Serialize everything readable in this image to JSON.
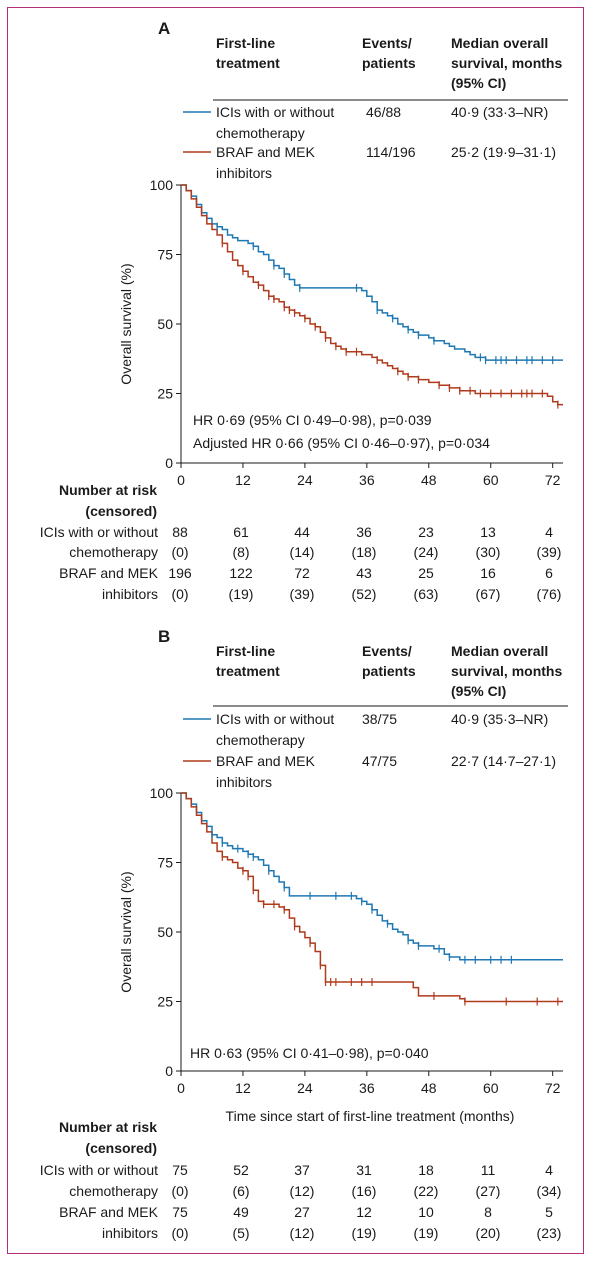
{
  "colors": {
    "ici": "#1f78b4",
    "braf": "#b03a1c",
    "frame": "#b0307c",
    "axis": "#1a1a1a"
  },
  "chart_data": [
    {
      "type": "line",
      "panel": "A",
      "legend_headers": {
        "treatment": [
          "First-line",
          "treatment"
        ],
        "events": [
          "Events/",
          "patients"
        ],
        "median": [
          "Median overall",
          "survival, months",
          "(95% CI)"
        ]
      },
      "series": [
        {
          "name_lines": [
            "ICIs with or without",
            "chemotherapy"
          ],
          "events": "46/88",
          "median": "40·9 (33·3–NR)",
          "x": [
            0,
            1,
            2,
            3,
            4,
            5,
            6,
            7,
            8,
            9,
            10,
            11,
            12,
            13,
            14,
            15,
            16,
            17,
            18,
            19,
            20,
            21,
            22,
            23,
            24,
            25,
            26,
            27,
            28,
            29,
            30,
            31,
            32,
            33,
            34,
            35,
            36,
            37,
            38,
            39,
            40,
            41,
            42,
            43,
            44,
            45,
            46,
            47,
            48,
            49,
            50,
            51,
            52,
            53,
            54,
            55,
            56,
            57,
            58,
            59,
            60,
            61,
            62,
            63,
            64,
            65,
            66,
            67,
            68,
            69,
            70,
            71,
            72,
            73,
            74
          ],
          "y": [
            100,
            98,
            96,
            93,
            90,
            88,
            86,
            85,
            84,
            82,
            81,
            80,
            80,
            79,
            78,
            76,
            75,
            73,
            71,
            70,
            68,
            66,
            64,
            63,
            63,
            63,
            63,
            63,
            63,
            63,
            63,
            63,
            63,
            63,
            63,
            62,
            60,
            58,
            55,
            54,
            53,
            52,
            50,
            49,
            48,
            47,
            46,
            46,
            45,
            44,
            44,
            43,
            42,
            41,
            41,
            40,
            39,
            38,
            38,
            37,
            37,
            37,
            37,
            37,
            37,
            37,
            37,
            37,
            37,
            37,
            37,
            37,
            37,
            37,
            37
          ]
        },
        {
          "name_lines": [
            "BRAF and MEK",
            "inhibitors"
          ],
          "events": "114/196",
          "median": "25·2 (19·9–31·1)",
          "x": [
            0,
            1,
            2,
            3,
            4,
            5,
            6,
            7,
            8,
            9,
            10,
            11,
            12,
            13,
            14,
            15,
            16,
            17,
            18,
            19,
            20,
            21,
            22,
            23,
            24,
            25,
            26,
            27,
            28,
            29,
            30,
            31,
            32,
            33,
            34,
            35,
            36,
            37,
            38,
            39,
            40,
            41,
            42,
            43,
            44,
            45,
            46,
            47,
            48,
            49,
            50,
            51,
            52,
            53,
            54,
            55,
            56,
            57,
            58,
            59,
            60,
            61,
            62,
            63,
            64,
            65,
            66,
            67,
            68,
            69,
            70,
            71,
            72,
            73,
            74
          ],
          "y": [
            100,
            98,
            95,
            92,
            89,
            86,
            84,
            82,
            79,
            76,
            73,
            71,
            69,
            67,
            65,
            64,
            62,
            60,
            59,
            58,
            56,
            55,
            54,
            53,
            52,
            50,
            49,
            47,
            45,
            43,
            42,
            41,
            40,
            40,
            40,
            39,
            39,
            38,
            37,
            36,
            35,
            34,
            33,
            32,
            31,
            31,
            30,
            30,
            29,
            29,
            28,
            28,
            27,
            27,
            26,
            26,
            26,
            25,
            25,
            25,
            25,
            25,
            25,
            25,
            25,
            25,
            25,
            25,
            25,
            25,
            25,
            24,
            22,
            21,
            21
          ]
        }
      ],
      "censor_ici": [
        7,
        14,
        18,
        20,
        23,
        34,
        38,
        41,
        44,
        46,
        49,
        58,
        59,
        61,
        62,
        63,
        65,
        67,
        68,
        70,
        72
      ],
      "censor_braf": [
        8,
        12,
        15,
        17,
        18,
        20,
        21,
        22,
        24,
        26,
        28,
        30,
        32,
        34,
        38,
        42,
        44,
        46,
        50,
        52,
        54,
        56,
        58,
        60,
        62,
        64,
        66,
        67,
        68,
        70,
        73
      ],
      "annotations": [
        "HR 0·69 (95% CI 0·49–0·98), p=0·039",
        "Adjusted HR 0·66 (95% CI 0·46–0·97), p=0·034"
      ],
      "xlim": [
        0,
        74
      ],
      "ylim": [
        0,
        100
      ],
      "xticks": [
        "0",
        "12",
        "24",
        "36",
        "48",
        "60",
        "72"
      ],
      "yticks": [
        "0",
        "25",
        "50",
        "75",
        "100"
      ],
      "ylabel": "Overall survival (%)",
      "risk": {
        "header": [
          "Number at risk",
          "(censored)"
        ],
        "rows": [
          {
            "label": "ICIs with or without",
            "values": [
              "88",
              "61",
              "44",
              "36",
              "23",
              "13",
              "4"
            ]
          },
          {
            "label": "chemotherapy",
            "values": [
              "(0)",
              "(8)",
              "(14)",
              "(18)",
              "(24)",
              "(30)",
              "(39)"
            ]
          },
          {
            "label": "BRAF and MEK",
            "values": [
              "196",
              "122",
              "72",
              "43",
              "25",
              "16",
              "6"
            ]
          },
          {
            "label": "inhibitors",
            "values": [
              "(0)",
              "(19)",
              "(39)",
              "(52)",
              "(63)",
              "(67)",
              "(76)"
            ]
          }
        ]
      }
    },
    {
      "type": "line",
      "panel": "B",
      "legend_headers": {
        "treatment": [
          "First-line",
          "treatment"
        ],
        "events": [
          "Events/",
          "patients"
        ],
        "median": [
          "Median overall",
          "survival, months",
          "(95% CI)"
        ]
      },
      "series": [
        {
          "name_lines": [
            "ICIs with or without",
            "chemotherapy"
          ],
          "events": "38/75",
          "median": "40·9 (35·3–NR)",
          "x": [
            0,
            1,
            2,
            3,
            4,
            5,
            6,
            7,
            8,
            9,
            10,
            11,
            12,
            13,
            14,
            15,
            16,
            17,
            18,
            19,
            20,
            21,
            22,
            23,
            24,
            25,
            26,
            27,
            28,
            29,
            30,
            31,
            32,
            33,
            34,
            35,
            36,
            37,
            38,
            39,
            40,
            41,
            42,
            43,
            44,
            45,
            46,
            47,
            48,
            49,
            50,
            51,
            52,
            53,
            54,
            55,
            56,
            57,
            58,
            59,
            60,
            61,
            62,
            63,
            64,
            65,
            66,
            67,
            68,
            69,
            70,
            71,
            72,
            73,
            74
          ],
          "y": [
            100,
            98,
            96,
            93,
            90,
            88,
            85,
            84,
            82,
            81,
            80,
            80,
            79,
            78,
            77,
            76,
            74,
            72,
            70,
            68,
            66,
            63,
            63,
            63,
            63,
            63,
            63,
            63,
            63,
            63,
            63,
            63,
            63,
            63,
            62,
            61,
            60,
            58,
            56,
            54,
            53,
            51,
            50,
            49,
            47,
            46,
            45,
            45,
            45,
            44,
            44,
            42,
            41,
            41,
            40,
            40,
            40,
            40,
            40,
            40,
            40,
            40,
            40,
            40,
            40,
            40,
            40,
            40,
            40,
            40,
            40,
            40,
            40,
            40,
            40
          ]
        },
        {
          "name_lines": [
            "BRAF and MEK",
            "inhibitors"
          ],
          "events": "47/75",
          "median": "22·7 (14·7–27·1)",
          "x": [
            0,
            1,
            2,
            3,
            4,
            5,
            6,
            7,
            8,
            9,
            10,
            11,
            12,
            13,
            14,
            15,
            16,
            17,
            18,
            19,
            20,
            21,
            22,
            23,
            24,
            25,
            26,
            27,
            28,
            29,
            30,
            31,
            32,
            33,
            34,
            35,
            36,
            37,
            38,
            39,
            40,
            41,
            42,
            43,
            44,
            45,
            46,
            47,
            48,
            49,
            50,
            51,
            52,
            53,
            54,
            55,
            56,
            57,
            58,
            59,
            60,
            61,
            62,
            63,
            64,
            65,
            66,
            67,
            68,
            69,
            70,
            71,
            72,
            73,
            74
          ],
          "y": [
            100,
            98,
            95,
            92,
            89,
            86,
            82,
            79,
            77,
            76,
            75,
            73,
            72,
            70,
            65,
            61,
            60,
            60,
            60,
            59,
            58,
            55,
            52,
            50,
            48,
            46,
            43,
            38,
            32,
            32,
            32,
            32,
            32,
            32,
            32,
            32,
            32,
            32,
            32,
            32,
            32,
            32,
            32,
            32,
            32,
            30,
            27,
            27,
            27,
            27,
            27,
            27,
            27,
            27,
            26,
            25,
            25,
            25,
            25,
            25,
            25,
            25,
            25,
            25,
            25,
            25,
            25,
            25,
            25,
            25,
            25,
            25,
            25,
            25,
            25
          ]
        }
      ],
      "censor_ici": [
        6,
        8,
        11,
        13,
        14,
        17,
        20,
        25,
        30,
        33,
        35,
        37,
        40,
        44,
        46,
        50,
        52,
        55,
        57,
        60,
        62,
        64
      ],
      "censor_braf": [
        8,
        12,
        13,
        14,
        16,
        18,
        20,
        22,
        25,
        27,
        28,
        29,
        30,
        33,
        35,
        37,
        49,
        55,
        63,
        69,
        73
      ],
      "annotations": [
        "HR 0·63 (95% CI 0·41–0·98), p=0·040"
      ],
      "xlim": [
        0,
        74
      ],
      "ylim": [
        0,
        100
      ],
      "xticks": [
        "0",
        "12",
        "24",
        "36",
        "48",
        "60",
        "72"
      ],
      "yticks": [
        "0",
        "25",
        "50",
        "75",
        "100"
      ],
      "ylabel": "Overall survival (%)",
      "xlabel": "Time since start of first-line treatment (months)",
      "risk": {
        "header": [
          "Number at risk",
          "(censored)"
        ],
        "rows": [
          {
            "label": "ICIs with or without",
            "values": [
              "75",
              "52",
              "37",
              "31",
              "18",
              "11",
              "4"
            ]
          },
          {
            "label": "chemotherapy",
            "values": [
              "(0)",
              "(6)",
              "(12)",
              "(16)",
              "(22)",
              "(27)",
              "(34)"
            ]
          },
          {
            "label": "BRAF and MEK",
            "values": [
              "75",
              "49",
              "27",
              "12",
              "10",
              "8",
              "5"
            ]
          },
          {
            "label": "inhibitors",
            "values": [
              "(0)",
              "(5)",
              "(12)",
              "(19)",
              "(19)",
              "(20)",
              "(23)"
            ]
          }
        ]
      }
    }
  ]
}
